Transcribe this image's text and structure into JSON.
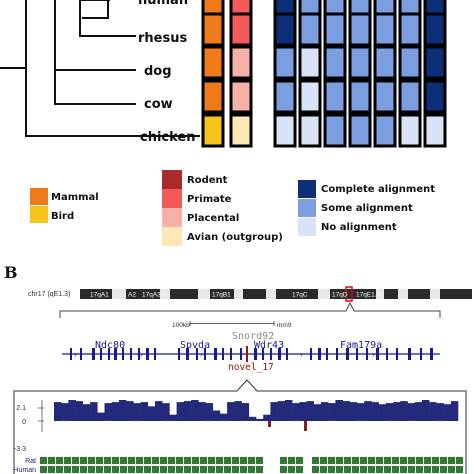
{
  "panelA": {
    "species": [
      "human",
      "rhesus",
      "dog",
      "cow",
      "chicken"
    ],
    "group_colors": [
      "#f07a1a",
      "#f07a1a",
      "#f07a1a",
      "#f07a1a",
      "#f6c31a"
    ],
    "class_colors": [
      "#f35a5a",
      "#f35a5a",
      "#f5b0a8",
      "#f5b0a8",
      "#fbe8b2"
    ],
    "alignment_levels": [
      [
        "complete",
        "some",
        "some",
        "some",
        "some",
        "some",
        "complete"
      ],
      [
        "complete",
        "some",
        "some",
        "some",
        "some",
        "some",
        "complete"
      ],
      [
        "some",
        "none",
        "some",
        "some",
        "some",
        "some",
        "complete"
      ],
      [
        "some",
        "none",
        "some",
        "some",
        "some",
        "some",
        "complete"
      ],
      [
        "none",
        "none",
        "some",
        "some",
        "some",
        "none",
        "none"
      ]
    ],
    "legend_group": [
      {
        "label": "Mammal",
        "color": "#f07a1a"
      },
      {
        "label": "Bird",
        "color": "#f6c31a"
      }
    ],
    "legend_class": [
      {
        "label": "Rodent",
        "color": "#a82a2a"
      },
      {
        "label": "Primate",
        "color": "#f35a5a"
      },
      {
        "label": "Placental",
        "color": "#f5b0a8"
      },
      {
        "label": "Avian (outgroup)",
        "color": "#fbe8b2"
      }
    ],
    "legend_alignment": [
      {
        "label": "Complete alignment",
        "color": "#0c2f78"
      },
      {
        "label": "Some alignment",
        "color": "#7a9ee0"
      },
      {
        "label": "No alignment",
        "color": "#d9e3f6"
      }
    ]
  },
  "panelB": {
    "label": "B",
    "chrom": "chr17 (qE1.3)",
    "bands": [
      "17qA1",
      "A2",
      "17qA3.3",
      "17qB1",
      "17qC",
      "17qD",
      "17qE1.3"
    ],
    "scale_left": "100kb",
    "scale_right": "mm9",
    "genes": [
      "Ndc80",
      "Spvda",
      "Wdr43",
      "Fam179a"
    ],
    "snord": "Snord92",
    "novel": "novel_17",
    "yticks": [
      "2.1",
      "0",
      "-3.3"
    ],
    "tracks": [
      "Rat",
      "Human"
    ],
    "colors": {
      "conservation": "#232a7a",
      "negative": "#8b1a1a",
      "aligned": "#2f7a2f",
      "gene": "#1a1a8a",
      "novel": "#8b1a1a"
    }
  }
}
